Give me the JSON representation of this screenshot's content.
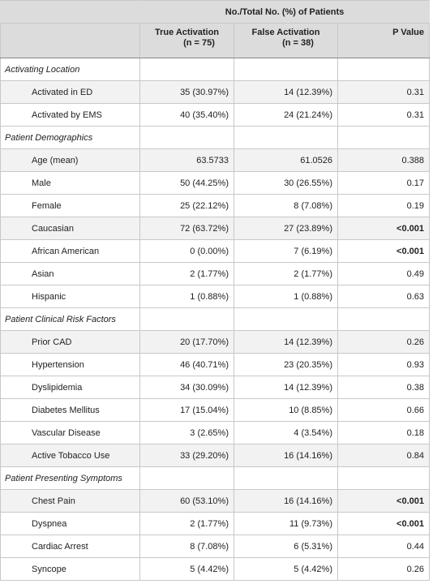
{
  "table": {
    "group_header": "No./Total No. (%) of Patients",
    "columns": [
      {
        "name": "True Activation",
        "n": "(n = 75)"
      },
      {
        "name": "False Activation",
        "n": "(n = 38)"
      },
      {
        "name": "P Value"
      }
    ],
    "sections": [
      {
        "title": "Activating Location",
        "rows": [
          {
            "label": "Activated in ED",
            "cells": [
              "35 (30.97%)",
              "14 (12.39%)",
              "0.31"
            ],
            "shaded": true
          },
          {
            "label": "Activated by EMS",
            "cells": [
              "40 (35.40%)",
              "24 (21.24%)",
              "0.31"
            ]
          }
        ]
      },
      {
        "title": "Patient Demographics",
        "rows": [
          {
            "label": "Age (mean)",
            "cells": [
              "63.5733",
              "61.0526",
              "0.388"
            ],
            "shaded": true
          },
          {
            "label": "Male",
            "cells": [
              "50 (44.25%)",
              "30 (26.55%)",
              "0.17"
            ]
          },
          {
            "label": "Female",
            "cells": [
              "25 (22.12%)",
              "8 (7.08%)",
              "0.19"
            ]
          },
          {
            "label": "Caucasian",
            "cells": [
              "72 (63.72%)",
              "27 (23.89%)",
              "<0.001"
            ],
            "bold_p": true,
            "shaded": true
          },
          {
            "label": "African American",
            "cells": [
              "0 (0.00%)",
              "7 (6.19%)",
              "<0.001"
            ],
            "bold_p": true
          },
          {
            "label": "Asian",
            "cells": [
              "2 (1.77%)",
              "2 (1.77%)",
              "0.49"
            ]
          },
          {
            "label": "Hispanic",
            "cells": [
              "1 (0.88%)",
              "1 (0.88%)",
              "0.63"
            ]
          }
        ]
      },
      {
        "title": "Patient Clinical Risk Factors",
        "rows": [
          {
            "label": "Prior CAD",
            "cells": [
              "20 (17.70%)",
              "14 (12.39%)",
              "0.26"
            ],
            "shaded": true
          },
          {
            "label": "Hypertension",
            "cells": [
              "46 (40.71%)",
              "23 (20.35%)",
              "0.93"
            ]
          },
          {
            "label": "Dyslipidemia",
            "cells": [
              "34 (30.09%)",
              "14 (12.39%)",
              "0.38"
            ]
          },
          {
            "label": "Diabetes Mellitus",
            "cells": [
              "17 (15.04%)",
              "10 (8.85%)",
              "0.66"
            ]
          },
          {
            "label": "Vascular Disease",
            "cells": [
              "3 (2.65%)",
              "4 (3.54%)",
              "0.18"
            ]
          },
          {
            "label": "Active Tobacco Use",
            "cells": [
              "33 (29.20%)",
              "16 (14.16%)",
              "0.84"
            ],
            "shaded": true
          }
        ]
      },
      {
        "title": "Patient Presenting Symptoms",
        "rows": [
          {
            "label": "Chest Pain",
            "cells": [
              "60 (53.10%)",
              "16 (14.16%)",
              "<0.001"
            ],
            "bold_p": true,
            "shaded": true
          },
          {
            "label": "Dyspnea",
            "cells": [
              "2 (1.77%)",
              "11 (9.73%)",
              "<0.001"
            ],
            "bold_p": true
          },
          {
            "label": "Cardiac Arrest",
            "cells": [
              "8 (7.08%)",
              "6 (5.31%)",
              "0.44"
            ]
          },
          {
            "label": "Syncope",
            "cells": [
              "5 (4.42%)",
              "5 (4.42%)",
              "0.26"
            ]
          }
        ]
      }
    ]
  }
}
